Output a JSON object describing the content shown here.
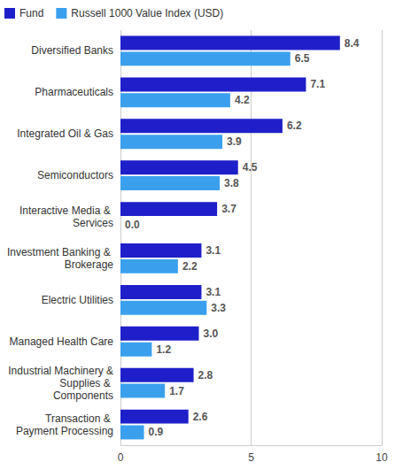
{
  "chart_data": {
    "type": "bar",
    "orientation": "horizontal",
    "categories": [
      "Diversified Banks",
      "Pharmaceuticals",
      "Integrated Oil & Gas",
      "Semiconductors",
      "Interactive Media & Services",
      "Investment Banking & Brokerage",
      "Electric Utilities",
      "Managed Health Care",
      "Industrial Machinery & Supplies & Components",
      "Transaction & Payment Processing"
    ],
    "series": [
      {
        "name": "Fund",
        "color": "#1f1fc9",
        "values": [
          8.4,
          7.1,
          6.2,
          4.5,
          3.7,
          3.1,
          3.1,
          3.0,
          2.8,
          2.6
        ],
        "value_labels": [
          "8.4",
          "7.1",
          "6.2",
          "4.5",
          "3.7",
          "3.1",
          "3.1",
          "3.0",
          "2.8",
          "2.6"
        ]
      },
      {
        "name": "Russell 1000 Value Index (USD)",
        "color": "#3aa0ee",
        "values": [
          6.5,
          4.2,
          3.9,
          3.8,
          0,
          2.2,
          3.3,
          1.2,
          1.7,
          0.9
        ],
        "value_labels": [
          "6.5",
          "4.2",
          "3.9",
          "3.8",
          "0.0",
          "2.2",
          "3.3",
          "1.2",
          "1.7",
          "0.9"
        ]
      }
    ],
    "xlim": [
      0,
      10
    ],
    "xticks": [
      0,
      5,
      10
    ],
    "grid": true,
    "legend": "top-left",
    "data_labels": true
  }
}
